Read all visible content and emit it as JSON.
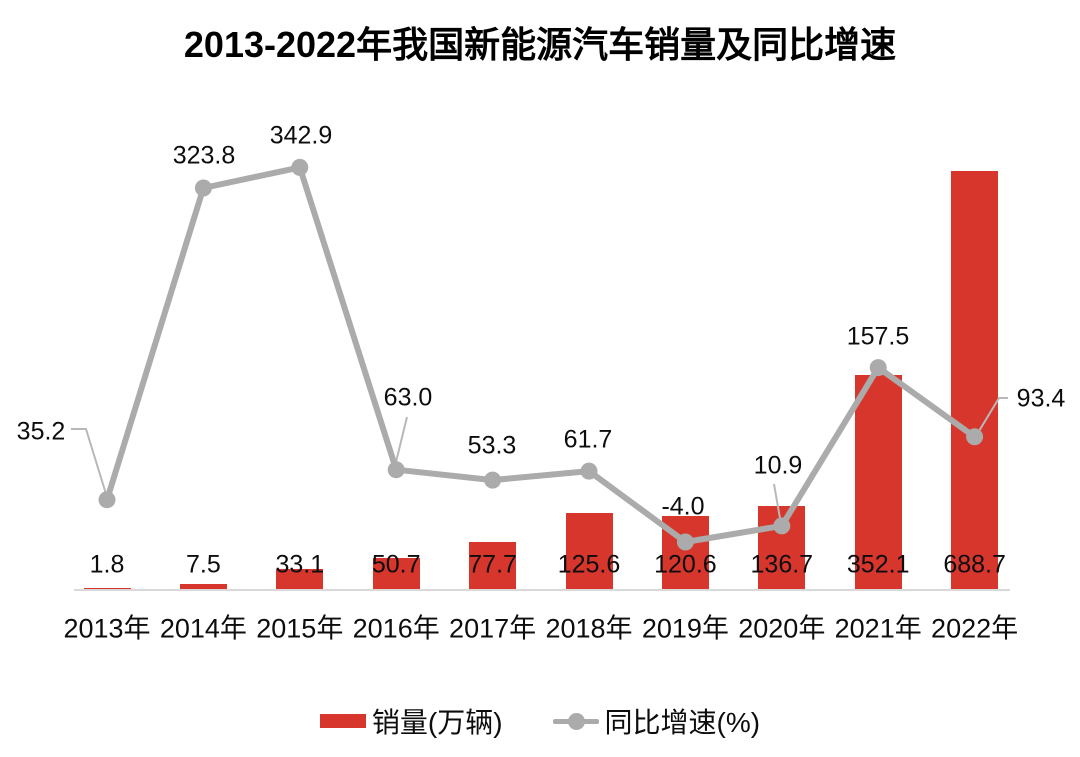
{
  "title": "2013-2022年我国新能源汽车销量及同比增速",
  "colors": {
    "bar": "#d6362c",
    "line": "#ababab",
    "axis": "#d9d9d9",
    "text": "#0d0d0d"
  },
  "legend": {
    "items": [
      {
        "label": "销量(万辆)",
        "series": "sales",
        "swatch": "red-bar"
      },
      {
        "label": "同比增速(%)",
        "series": "growth",
        "swatch": "gray-line-dot"
      }
    ]
  },
  "chart_data": {
    "type": "bar",
    "subtype": "combo-bar-line-dual-axis",
    "title": "2013-2022年我国新能源汽车销量及同比增速",
    "categories": [
      "2013年",
      "2014年",
      "2015年",
      "2016年",
      "2017年",
      "2018年",
      "2019年",
      "2020年",
      "2021年",
      "2022年"
    ],
    "series": [
      {
        "name": "销量(万辆)",
        "type": "bar",
        "color": "#d6362c",
        "values": [
          1.8,
          7.5,
          33.1,
          50.7,
          77.7,
          125.6,
          120.6,
          136.7,
          352.1,
          688.7
        ]
      },
      {
        "name": "同比增速(%)",
        "type": "line",
        "color": "#ababab",
        "values": [
          35.2,
          323.8,
          342.9,
          63.0,
          53.3,
          61.7,
          -4.0,
          10.9,
          157.5,
          93.4
        ]
      }
    ],
    "xlabel": "",
    "ylabel": "",
    "data_labels": "all-points",
    "callout_leader_lines_on": [
      "2013年",
      "2016年",
      "2020年",
      "2022年"
    ],
    "grid": false,
    "value_axes_visible": false,
    "legend_position": "bottom"
  }
}
